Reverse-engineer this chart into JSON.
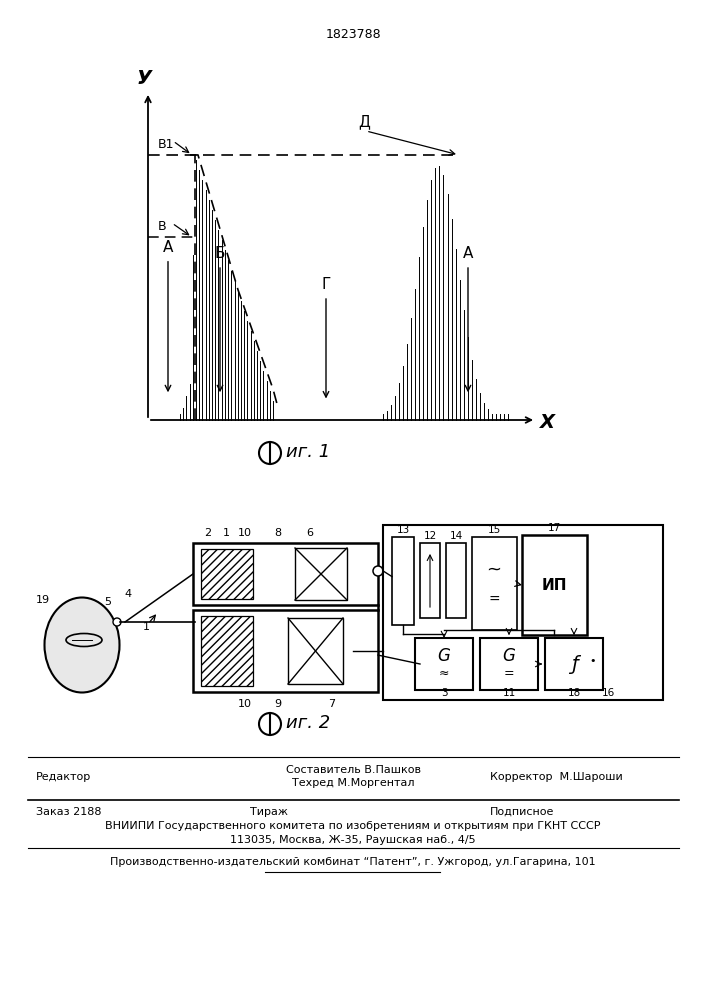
{
  "title": "1823788",
  "background_color": "#ffffff",
  "text_color": "#000000",
  "footer_line1_center": "Составитель В.Пашков",
  "footer_line2_center": "Техред М.Моргентал",
  "footer_left": "Редактор",
  "footer_right": "Корректор  М.Шароши",
  "bottom_line1_left": "Заказ 2188",
  "bottom_line1_mid": "Тираж",
  "bottom_line1_right": "Подписное",
  "bottom_line2": "ВНИИПИ Государственного комитета по изобретениям и открытиям при ГКНТ СССР",
  "bottom_line3": "113035, Москва, Ж-35, Раушская наб., 4/5",
  "bottom_line4": "Производственно-издательский комбинат “Патент”, г. Ужгород, ул.Гагарина, 101"
}
